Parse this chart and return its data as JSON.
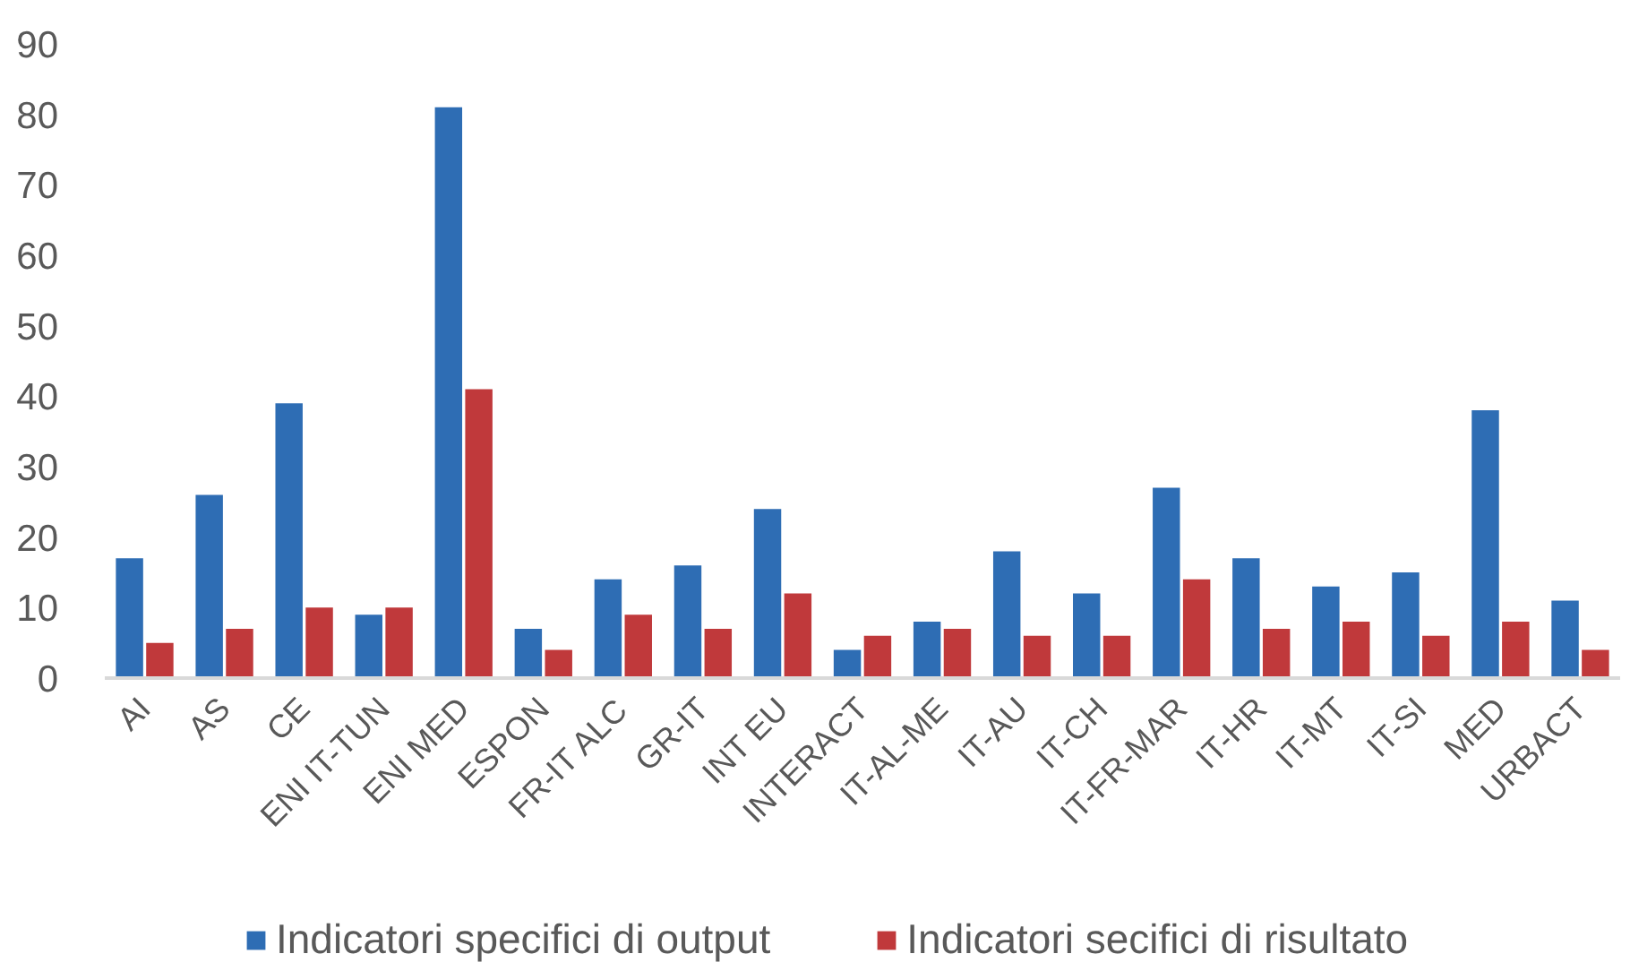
{
  "chart_data": {
    "type": "bar",
    "categories": [
      "AI",
      "AS",
      "CE",
      "ENI IT-TUN",
      "ENI MED",
      "ESPON",
      "FR-IT ALC",
      "GR-IT",
      "INT EU",
      "INTERACT",
      "IT-AL-ME",
      "IT-AU",
      "IT-CH",
      "IT-FR-MAR",
      "IT-HR",
      "IT-MT",
      "IT-SI",
      "MED",
      "URBACT"
    ],
    "series": [
      {
        "name": "Indicatori specifici di output",
        "color": "#2e6db4",
        "values": [
          17,
          26,
          39,
          9,
          81,
          7,
          14,
          16,
          24,
          4,
          8,
          18,
          12,
          27,
          17,
          13,
          15,
          38,
          11
        ]
      },
      {
        "name": "Indicatori secifici di risultato",
        "color": "#c0393b",
        "values": [
          5,
          7,
          10,
          10,
          41,
          4,
          9,
          7,
          12,
          6,
          7,
          6,
          6,
          14,
          7,
          8,
          6,
          8,
          4
        ]
      }
    ],
    "ylim": [
      0,
      90
    ],
    "yticks": [
      0,
      10,
      20,
      30,
      40,
      50,
      60,
      70,
      80,
      90
    ],
    "legend": "bottom"
  }
}
